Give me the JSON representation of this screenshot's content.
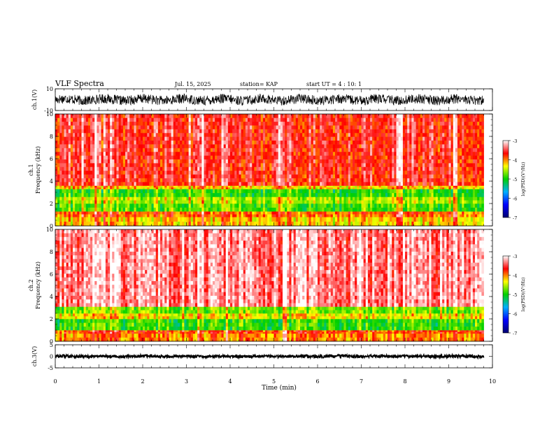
{
  "header": {
    "title": "VLF Spectra",
    "date": "Jul. 15, 2025",
    "station": "station= KAP",
    "start_time": "start  UT =   4 : 10: 1"
  },
  "colorbar": {
    "label": "log(PSD)(V²/Hz)",
    "min": -7,
    "max": -3,
    "ticks": [
      -3,
      -4,
      -5,
      -6,
      -7
    ],
    "tick_labels": [
      "-3",
      "-4",
      "-5",
      "-6",
      "-7"
    ],
    "colors": [
      "#000070",
      "#0000ff",
      "#00b0ff",
      "#00d000",
      "#ffff00",
      "#ff0000",
      "#ffffff"
    ]
  },
  "chart_data": [
    {
      "id": "ch1-waveform",
      "type": "line",
      "ylabel": "ch.1(V)",
      "ylim": [
        -10,
        10
      ],
      "yticks": [
        10,
        -10
      ],
      "ytick_labels": [
        "10",
        "-10"
      ],
      "xlim": [
        0,
        10
      ],
      "data_extent_min": 9.8,
      "mean": 0,
      "amplitude": 4.5,
      "series_color": "#000000"
    },
    {
      "id": "ch1-spectrogram",
      "type": "heatmap",
      "ylabel": "ch.1\nFrequency  (kHz)",
      "ylim": [
        0,
        10
      ],
      "yticks": [
        0,
        2,
        4,
        6,
        8,
        10
      ],
      "ytick_labels": [
        "0",
        "2",
        "4",
        "6",
        "8",
        "10"
      ],
      "xlim": [
        0,
        10
      ],
      "data_extent_min": 9.8,
      "z_units": "log(PSD)(V²/Hz)",
      "zlim": [
        -7,
        -3
      ],
      "band_profile": [
        {
          "f_khz": [
            0,
            0.8
          ],
          "log_psd": -4.2
        },
        {
          "f_khz": [
            0.8,
            1.3
          ],
          "log_psd": -3.9
        },
        {
          "f_khz": [
            1.3,
            2.0
          ],
          "log_psd": -4.8
        },
        {
          "f_khz": [
            2.0,
            2.6
          ],
          "log_psd": -4.5
        },
        {
          "f_khz": [
            2.6,
            3.3
          ],
          "log_psd": -4.9
        },
        {
          "f_khz": [
            3.3,
            3.6
          ],
          "log_psd": -4.2
        },
        {
          "f_khz": [
            3.6,
            10
          ],
          "log_psd": -3.6
        }
      ]
    },
    {
      "id": "ch2-spectrogram",
      "type": "heatmap",
      "ylabel": "ch.2\nFrequency  (kHz)",
      "ylim": [
        0,
        10
      ],
      "yticks": [
        0,
        2,
        4,
        6,
        8,
        10
      ],
      "ytick_labels": [
        "0",
        "2",
        "4",
        "6",
        "8",
        "10"
      ],
      "xlim": [
        0,
        10
      ],
      "data_extent_min": 9.8,
      "z_units": "log(PSD)(V²/Hz)",
      "zlim": [
        -7,
        -3
      ],
      "band_profile": [
        {
          "f_khz": [
            0,
            0.7
          ],
          "log_psd": -4.0
        },
        {
          "f_khz": [
            0.7,
            1.0
          ],
          "log_psd": -3.8
        },
        {
          "f_khz": [
            1.0,
            2.0
          ],
          "log_psd": -4.9
        },
        {
          "f_khz": [
            2.0,
            2.5
          ],
          "log_psd": -4.3
        },
        {
          "f_khz": [
            2.5,
            3.1
          ],
          "log_psd": -4.7
        },
        {
          "f_khz": [
            3.1,
            10
          ],
          "log_psd": -3.3
        }
      ]
    },
    {
      "id": "ch3-waveform",
      "type": "line",
      "ylabel": "ch.3(V)",
      "ylim": [
        -5,
        5
      ],
      "yticks": [
        5,
        0,
        -5
      ],
      "ytick_labels": [
        "5",
        "0",
        "-5"
      ],
      "xlim": [
        0,
        10
      ],
      "data_extent_min": 9.8,
      "mean": 0,
      "amplitude": 0.6,
      "series_color": "#000000"
    }
  ],
  "xaxis": {
    "label": "Time  (min)",
    "ticks": [
      0,
      1,
      2,
      3,
      4,
      5,
      6,
      7,
      8,
      9,
      10
    ],
    "tick_labels": [
      "0",
      "1",
      "2",
      "3",
      "4",
      "5",
      "6",
      "7",
      "8",
      "9",
      "10"
    ]
  }
}
